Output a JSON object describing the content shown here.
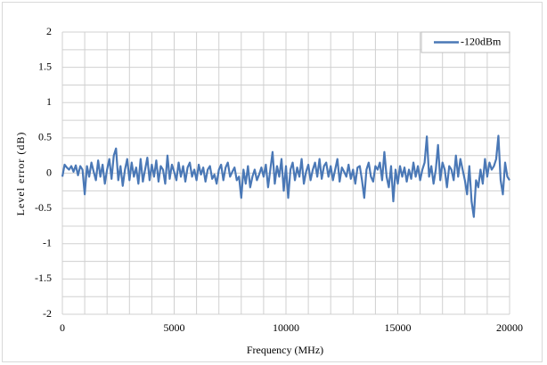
{
  "chart_data": {
    "type": "line",
    "x_label": "Frequency (MHz)",
    "y_label": "Level error (dB)",
    "x": [
      0,
      100,
      200,
      300,
      400,
      500,
      600,
      700,
      800,
      900,
      1000,
      1100,
      1200,
      1300,
      1400,
      1500,
      1600,
      1700,
      1800,
      1900,
      2000,
      2100,
      2200,
      2300,
      2400,
      2500,
      2600,
      2700,
      2800,
      2900,
      3000,
      3100,
      3200,
      3300,
      3400,
      3500,
      3600,
      3700,
      3800,
      3900,
      4000,
      4100,
      4200,
      4300,
      4400,
      4500,
      4600,
      4700,
      4800,
      4900,
      5000,
      5100,
      5200,
      5300,
      5400,
      5500,
      5600,
      5700,
      5800,
      5900,
      6000,
      6100,
      6200,
      6300,
      6400,
      6500,
      6600,
      6700,
      6800,
      6900,
      7000,
      7100,
      7200,
      7300,
      7400,
      7500,
      7600,
      7700,
      7800,
      7900,
      8000,
      8100,
      8200,
      8300,
      8400,
      8500,
      8600,
      8700,
      8800,
      8900,
      9000,
      9100,
      9200,
      9300,
      9400,
      9500,
      9600,
      9700,
      9800,
      9900,
      10000,
      10100,
      10200,
      10300,
      10400,
      10500,
      10600,
      10700,
      10800,
      10900,
      11000,
      11100,
      11200,
      11300,
      11400,
      11500,
      11600,
      11700,
      11800,
      11900,
      12000,
      12100,
      12200,
      12300,
      12400,
      12500,
      12600,
      12700,
      12800,
      12900,
      13000,
      13100,
      13200,
      13300,
      13400,
      13500,
      13600,
      13700,
      13800,
      13900,
      14000,
      14100,
      14200,
      14300,
      14400,
      14500,
      14600,
      14700,
      14800,
      14900,
      15000,
      15100,
      15200,
      15300,
      15400,
      15500,
      15600,
      15700,
      15800,
      15900,
      16000,
      16100,
      16200,
      16300,
      16400,
      16500,
      16600,
      16700,
      16800,
      16900,
      17000,
      17100,
      17200,
      17300,
      17400,
      17500,
      17600,
      17700,
      17800,
      17900,
      18000,
      18100,
      18200,
      18300,
      18400,
      18500,
      18600,
      18700,
      18800,
      18900,
      19000,
      19100,
      19200,
      19300,
      19400,
      19500,
      19600,
      19700,
      19800,
      19900,
      20000
    ],
    "series": [
      {
        "name": "-120dBm",
        "color": "#4a78b6",
        "values": [
          -0.05,
          0.12,
          0.08,
          0.05,
          0.1,
          0.02,
          0.11,
          -0.03,
          0.1,
          0.05,
          -0.3,
          0.1,
          -0.05,
          0.15,
          0.02,
          -0.1,
          0.18,
          -0.05,
          0.12,
          -0.15,
          0.05,
          0.2,
          -0.08,
          0.25,
          0.35,
          -0.1,
          0.1,
          -0.18,
          0.05,
          0.2,
          -0.1,
          0.15,
          -0.05,
          0.08,
          -0.15,
          0.2,
          -0.12,
          0.05,
          0.22,
          -0.1,
          0.12,
          -0.05,
          0.18,
          -0.12,
          0.1,
          0.05,
          -0.15,
          0.25,
          -0.08,
          0.12,
          0.02,
          -0.1,
          0.15,
          -0.05,
          0.1,
          -0.12,
          0.08,
          0.15,
          -0.05,
          0.05,
          -0.1,
          0.12,
          -0.02,
          0.08,
          -0.12,
          0.05,
          0.1,
          -0.08,
          -0.02,
          -0.15,
          0.05,
          0.12,
          -0.1,
          0.08,
          0.15,
          -0.05,
          0.02,
          0.08,
          -0.1,
          -0.05,
          -0.35,
          0.05,
          -0.15,
          0.1,
          -0.2,
          -0.05,
          0.05,
          -0.1,
          -0.02,
          0.08,
          -0.05,
          0.12,
          -0.2,
          0.05,
          0.3,
          -0.15,
          0.1,
          -0.05,
          0.2,
          -0.25,
          0.1,
          -0.35,
          0.05,
          0.15,
          -0.1,
          0.08,
          -0.05,
          0.2,
          -0.15,
          0.02,
          0.12,
          -0.1,
          0.05,
          0.15,
          -0.05,
          0.2,
          -0.08,
          0.1,
          0.15,
          -0.05,
          0.1,
          -0.1,
          0.05,
          0.2,
          -0.12,
          0.08,
          0.02,
          -0.05,
          0.12,
          -0.08,
          0.05,
          -0.15,
          0.08,
          0.1,
          -0.1,
          -0.35,
          0.05,
          0.15,
          -0.05,
          -0.12,
          0.1,
          0.05,
          0.15,
          -0.1,
          0.3,
          -0.05,
          -0.2,
          0.1,
          -0.4,
          0.05,
          -0.15,
          0.1,
          -0.05,
          0.08,
          -0.12,
          0.05,
          -0.08,
          0.15,
          -0.05,
          0.1,
          -0.1,
          0.05,
          0.15,
          0.52,
          -0.05,
          0.1,
          -0.15,
          0.05,
          0.4,
          -0.1,
          0.15,
          0.05,
          -0.2,
          0.1,
          0.05,
          -0.1,
          0.25,
          -0.05,
          0.2,
          0.05,
          -0.1,
          -0.3,
          0.1,
          -0.4,
          -0.62,
          -0.1,
          -0.2,
          0.05,
          -0.15,
          0.2,
          -0.05,
          0.15,
          0.05,
          0.1,
          0.2,
          0.53,
          -0.1,
          -0.3,
          0.15,
          -0.05,
          -0.1
        ]
      }
    ],
    "xlim": [
      0,
      20000
    ],
    "xticks": [
      0,
      5000,
      10000,
      15000,
      20000
    ],
    "minor_xticks": [
      1000,
      2000,
      3000,
      4000,
      6000,
      7000,
      8000,
      9000,
      11000,
      12000,
      13000,
      14000,
      16000,
      17000,
      18000,
      19000
    ],
    "ylim": [
      -2,
      2
    ],
    "yticks": [
      -2,
      -1.5,
      -1,
      -0.5,
      0,
      0.5,
      1,
      1.5,
      2
    ],
    "minor_yticks": [
      -1.75,
      -1.25,
      -0.75,
      -0.25,
      0.25,
      0.75,
      1.25,
      1.75
    ],
    "grid": true,
    "legend": "upper right"
  }
}
